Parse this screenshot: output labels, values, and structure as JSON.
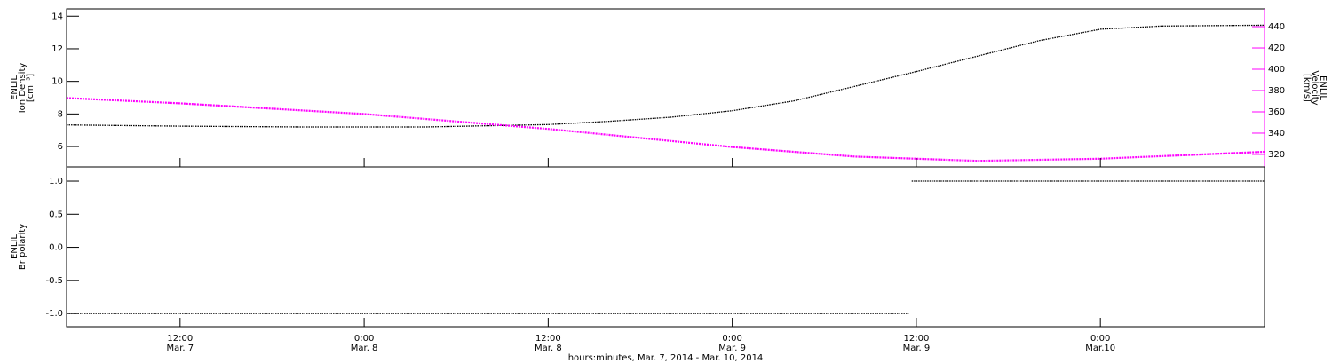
{
  "chart_data": [
    {
      "type": "line",
      "ylabel": [
        "ENLIL",
        "Ion Density",
        "[cm⁻³]"
      ],
      "y2label": [
        "ENLIL",
        "Velocity",
        "[km/s]"
      ],
      "xlim": [
        4.6,
        82.7
      ],
      "ylim": [
        4.75,
        14.45
      ],
      "yticks": [
        6,
        8,
        10,
        12,
        14
      ],
      "y2lim": [
        308.3,
        456.7
      ],
      "y2ticks": [
        320,
        340,
        360,
        380,
        400,
        420,
        440
      ],
      "y2color": "#ff00ff",
      "series": [
        {
          "name": "Ion Density",
          "color": "#000000",
          "axis": "y",
          "x": [
            4.6,
            12,
            20,
            28,
            36,
            40,
            44,
            48,
            52,
            56,
            60,
            64,
            68,
            72,
            76,
            82.7
          ],
          "values": [
            7.33,
            7.25,
            7.2,
            7.2,
            7.35,
            7.55,
            7.8,
            8.2,
            8.8,
            9.7,
            10.6,
            11.55,
            12.5,
            13.2,
            13.4,
            13.45
          ]
        },
        {
          "name": "Velocity",
          "color": "#ff00ff",
          "axis": "y2",
          "x": [
            4.6,
            12,
            24,
            36,
            48,
            56,
            64,
            72,
            82.7
          ],
          "values": [
            373,
            368,
            358,
            344,
            327,
            318,
            314,
            316,
            322.5
          ]
        }
      ]
    },
    {
      "type": "line",
      "ylabel": [
        "ENLIL",
        "Br polarity"
      ],
      "xlim": [
        4.6,
        82.7
      ],
      "ylim": [
        -1.2,
        1.215
      ],
      "yticks": [
        {
          "value": -1,
          "label": "-1.0"
        },
        -0.5,
        {
          "value": 0,
          "label": "0.0"
        },
        0.5,
        {
          "value": 1,
          "label": "1.0"
        }
      ],
      "xticks": [
        {
          "value": 12,
          "label": "12:00"
        },
        {
          "value": 24,
          "label": "0:00"
        },
        {
          "value": 36,
          "label": "12:00"
        },
        {
          "value": 48,
          "label": "0:00"
        },
        {
          "value": 60,
          "label": "12:00"
        },
        {
          "value": 72,
          "label": "0:00"
        }
      ],
      "xtick_dates": [
        "Mar. 7",
        "Mar. 8",
        "Mar. 8",
        "Mar. 9",
        "Mar. 9",
        "Mar.10"
      ],
      "xlabel": "hours:minutes, Mar.  7, 2014 - Mar. 10, 2014",
      "series": [
        {
          "name": "Br polarity",
          "color": "#000000",
          "axis": "y",
          "x": [
            4.6,
            59.5,
            59.6,
            59.7,
            82.7
          ],
          "values": [
            -1,
            -1,
            null,
            1,
            1
          ]
        }
      ]
    }
  ]
}
